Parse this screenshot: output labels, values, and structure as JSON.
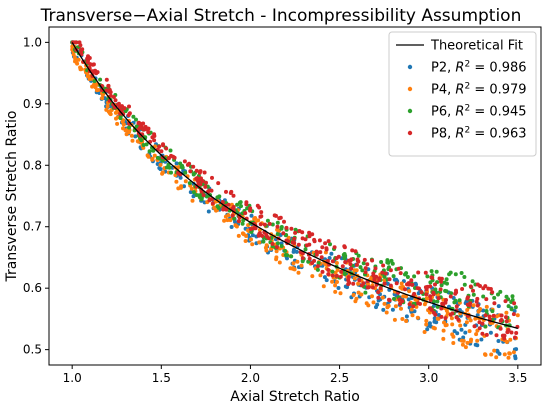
{
  "chart_data": {
    "type": "scatter",
    "title": "Transverse−Axial Stretch - Incompressibility Assumption",
    "xlabel": "Axial Stretch Ratio",
    "ylabel": "Transverse Stretch Ratio",
    "xlim": [
      0.87,
      3.63
    ],
    "ylim": [
      0.475,
      1.025
    ],
    "xticks": [
      "1.0",
      "1.5",
      "2.0",
      "2.5",
      "3.0",
      "3.5"
    ],
    "yticks": [
      "0.5",
      "0.6",
      "0.7",
      "0.8",
      "0.9",
      "1.0"
    ],
    "grid": false,
    "legend_position": "top-right",
    "fit": {
      "label": "Theoretical Fit",
      "color": "#000000",
      "formula": "y = 1 / sqrt(x)",
      "x_range": [
        1.0,
        3.5
      ]
    },
    "series": [
      {
        "name": "P2",
        "r2_label": "R",
        "r2_value": "= 0.986",
        "color": "#1f77b4",
        "x_range": [
          1.0,
          3.5
        ]
      },
      {
        "name": "P4",
        "r2_label": "R",
        "r2_value": "= 0.979",
        "color": "#ff7f0e",
        "x_range": [
          1.0,
          3.5
        ]
      },
      {
        "name": "P6",
        "r2_label": "R",
        "r2_value": "= 0.945",
        "color": "#2ca02c",
        "x_range": [
          1.0,
          3.5
        ]
      },
      {
        "name": "P8",
        "r2_label": "R",
        "r2_value": "= 0.963",
        "color": "#d62728",
        "x_range": [
          1.0,
          3.5
        ]
      }
    ]
  }
}
